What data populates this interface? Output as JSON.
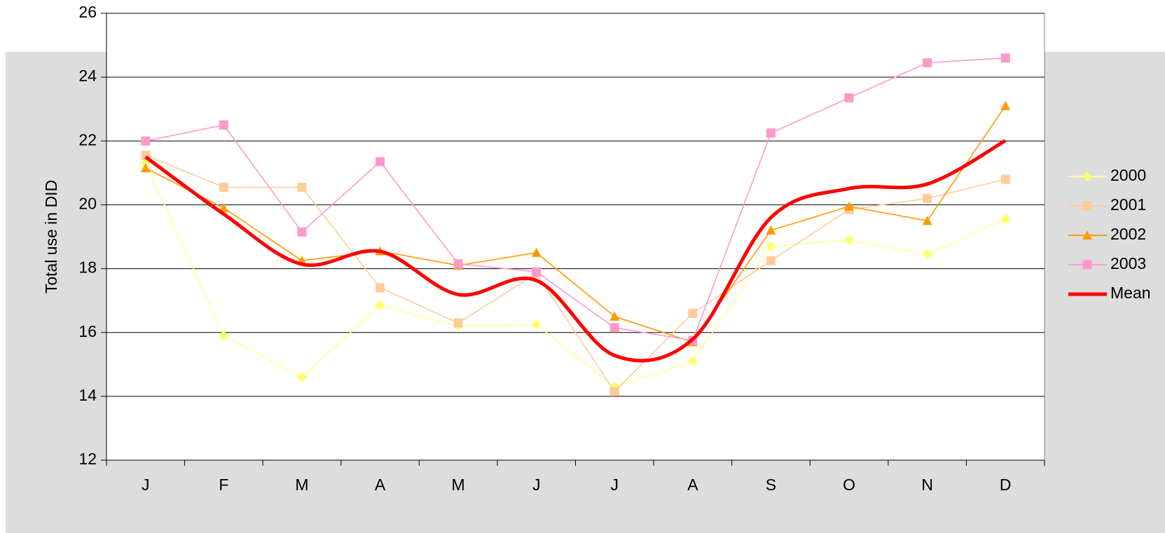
{
  "chart_data": {
    "type": "line",
    "y_label": "Total use in DID",
    "categories": [
      "J",
      "F",
      "M",
      "A",
      "M",
      "J",
      "J",
      "A",
      "S",
      "O",
      "N",
      "D"
    ],
    "series": [
      {
        "name": "2000",
        "color": "#ffff99",
        "marker_color": "#ffff66",
        "marker": "diamond",
        "values": [
          21.3,
          15.9,
          14.6,
          16.85,
          16.2,
          16.25,
          14.3,
          15.1,
          18.7,
          18.9,
          18.45,
          19.55
        ]
      },
      {
        "name": "2001",
        "color": "#ffcc99",
        "marker_color": "#ffcc99",
        "marker": "square",
        "values": [
          21.55,
          20.55,
          20.55,
          17.4,
          16.3,
          17.85,
          14.15,
          16.6,
          18.25,
          19.85,
          20.2,
          20.8
        ]
      },
      {
        "name": "2002",
        "color": "#ff9900",
        "marker_color": "#ff9900",
        "marker": "triangle",
        "values": [
          21.15,
          19.9,
          18.25,
          18.55,
          18.1,
          18.5,
          16.5,
          15.7,
          19.2,
          19.95,
          19.5,
          23.1
        ]
      },
      {
        "name": "2003",
        "color": "#ff99cc",
        "marker_color": "#ff99cc",
        "marker": "square",
        "values": [
          22.0,
          22.5,
          19.15,
          21.35,
          18.15,
          17.9,
          16.15,
          15.75,
          22.25,
          23.35,
          24.45,
          24.6
        ]
      },
      {
        "name": "Mean",
        "color": "#ff0000",
        "marker": "none",
        "smooth": true,
        "values": [
          21.5,
          19.71,
          18.14,
          18.54,
          17.19,
          17.63,
          15.28,
          15.79,
          19.6,
          20.51,
          20.65,
          22.01
        ]
      }
    ],
    "ylim": [
      12,
      26
    ],
    "yticks": [
      12,
      14,
      16,
      18,
      20,
      22,
      24,
      26
    ],
    "grid": true,
    "legend": "right"
  }
}
